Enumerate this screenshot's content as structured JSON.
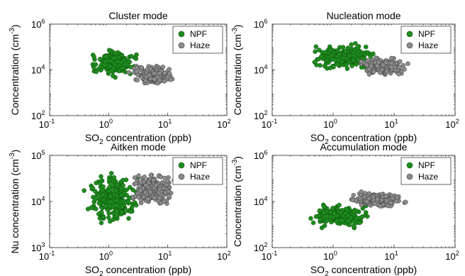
{
  "chart_data": [
    {
      "type": "scatter",
      "title": "Cluster mode",
      "xlabel_main": "SO",
      "xlabel_sub": "2",
      "xlabel_rest": " concentration (ppb)",
      "ylabel_main": "Concentration (cm",
      "ylabel_sup": "-3",
      "ylabel_rest": ")",
      "xscale": "log",
      "yscale": "log",
      "xlim": [
        0.1,
        100
      ],
      "ylim": [
        100,
        1000000
      ],
      "x_ticks": [
        {
          "value": 0.1,
          "base": "10",
          "exp": "-1"
        },
        {
          "value": 1,
          "base": "10",
          "exp": "0"
        },
        {
          "value": 10,
          "base": "10",
          "exp": "1"
        },
        {
          "value": 100,
          "base": "10",
          "exp": "2"
        }
      ],
      "y_ticks": [
        {
          "value": 100,
          "base": "10",
          "exp": "2"
        },
        {
          "value": 10000,
          "base": "10",
          "exp": "4"
        },
        {
          "value": 1000000,
          "base": "10",
          "exp": "6"
        }
      ],
      "legend_position": "top-right",
      "series": [
        {
          "name": "NPF",
          "color": "#1e8c1e",
          "x_range": [
            0.4,
            3.5
          ],
          "y_range": [
            4000,
            120000
          ],
          "count": 180,
          "seed": 11
        },
        {
          "name": "Haze",
          "color": "#8c8c8c",
          "x_range": [
            2.0,
            14.0
          ],
          "y_range": [
            1500,
            20000
          ],
          "count": 170,
          "seed": 12
        }
      ]
    },
    {
      "type": "scatter",
      "title": "Nucleation mode",
      "xlabel_main": "SO",
      "xlabel_sub": "2",
      "xlabel_rest": " concentration (ppb)",
      "ylabel_main": "Concentration (cm",
      "ylabel_sup": "-3",
      "ylabel_rest": ")",
      "xscale": "log",
      "yscale": "log",
      "xlim": [
        0.1,
        100
      ],
      "ylim": [
        100,
        1000000
      ],
      "x_ticks": [
        {
          "value": 0.1,
          "base": "10",
          "exp": "-1"
        },
        {
          "value": 1,
          "base": "10",
          "exp": "0"
        },
        {
          "value": 10,
          "base": "10",
          "exp": "1"
        },
        {
          "value": 100,
          "base": "10",
          "exp": "2"
        }
      ],
      "y_ticks": [
        {
          "value": 100,
          "base": "10",
          "exp": "2"
        },
        {
          "value": 10000,
          "base": "10",
          "exp": "4"
        },
        {
          "value": 1000000,
          "base": "10",
          "exp": "6"
        }
      ],
      "legend_position": "top-right",
      "series": [
        {
          "name": "NPF",
          "color": "#1e8c1e",
          "x_range": [
            0.4,
            6.0
          ],
          "y_range": [
            8000,
            150000
          ],
          "count": 220,
          "seed": 21
        },
        {
          "name": "Haze",
          "color": "#8c8c8c",
          "x_range": [
            2.5,
            18.0
          ],
          "y_range": [
            5000,
            40000
          ],
          "count": 200,
          "seed": 22
        }
      ]
    },
    {
      "type": "scatter",
      "title": "Aitken mode",
      "xlabel_main": "SO",
      "xlabel_sub": "2",
      "xlabel_rest": " concentration (ppb)",
      "ylabel_main": "Nu concentration (cm",
      "ylabel_sup": "-3",
      "ylabel_rest": ")",
      "xscale": "log",
      "yscale": "log",
      "xlim": [
        0.1,
        100
      ],
      "ylim": [
        1000,
        100000
      ],
      "x_ticks": [
        {
          "value": 0.1,
          "base": "10",
          "exp": "-1"
        },
        {
          "value": 1,
          "base": "10",
          "exp": "0"
        },
        {
          "value": 10,
          "base": "10",
          "exp": "1"
        },
        {
          "value": 100,
          "base": "10",
          "exp": "2"
        }
      ],
      "y_ticks": [
        {
          "value": 1000,
          "base": "10",
          "exp": "3"
        },
        {
          "value": 10000,
          "base": "10",
          "exp": "4"
        },
        {
          "value": 100000,
          "base": "10",
          "exp": "5"
        }
      ],
      "legend_position": "top-right",
      "series": [
        {
          "name": "NPF",
          "color": "#1e8c1e",
          "x_range": [
            0.35,
            4.0
          ],
          "y_range": [
            2500,
            55000
          ],
          "count": 260,
          "seed": 31
        },
        {
          "name": "Haze",
          "color": "#8c8c8c",
          "x_range": [
            2.0,
            16.0
          ],
          "y_range": [
            8000,
            45000
          ],
          "count": 220,
          "seed": 32
        }
      ]
    },
    {
      "type": "scatter",
      "title": "Accumulation mode",
      "xlabel_main": "SO",
      "xlabel_sub": "2",
      "xlabel_rest": " concentration (ppb)",
      "ylabel_main": "Concentration (cm",
      "ylabel_sup": "-3",
      "ylabel_rest": ")",
      "xscale": "log",
      "yscale": "log",
      "xlim": [
        0.1,
        100
      ],
      "ylim": [
        100,
        1000000
      ],
      "x_ticks": [
        {
          "value": 0.1,
          "base": "10",
          "exp": "-1"
        },
        {
          "value": 1,
          "base": "10",
          "exp": "0"
        },
        {
          "value": 10,
          "base": "10",
          "exp": "1"
        },
        {
          "value": 100,
          "base": "10",
          "exp": "2"
        }
      ],
      "y_ticks": [
        {
          "value": 100,
          "base": "10",
          "exp": "2"
        },
        {
          "value": 10000,
          "base": "10",
          "exp": "4"
        },
        {
          "value": 1000000,
          "base": "10",
          "exp": "6"
        }
      ],
      "legend_position": "top-right",
      "series": [
        {
          "name": "NPF",
          "color": "#1e8c1e",
          "x_range": [
            0.3,
            5.0
          ],
          "y_range": [
            600,
            9000
          ],
          "count": 200,
          "seed": 41
        },
        {
          "name": "Haze",
          "color": "#8c8c8c",
          "x_range": [
            1.5,
            17.0
          ],
          "y_range": [
            5000,
            30000
          ],
          "count": 200,
          "seed": 42
        }
      ]
    }
  ]
}
